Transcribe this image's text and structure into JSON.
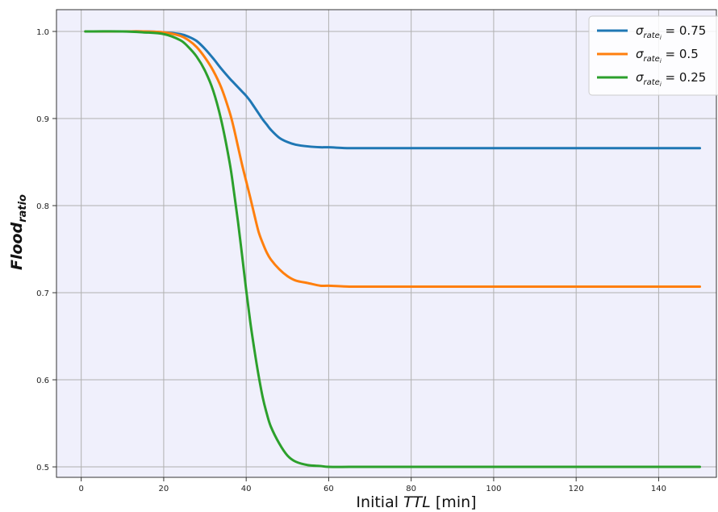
{
  "chart_data": {
    "type": "line",
    "title": "",
    "xlabel": {
      "prefix": "Initial ",
      "italic": "TTL",
      "suffix": " [min]"
    },
    "ylabel": {
      "main": "Flood",
      "subscript": "ratio"
    },
    "xlim": [
      -6,
      154
    ],
    "ylim": [
      0.488,
      1.025
    ],
    "xticks": [
      0,
      20,
      40,
      60,
      80,
      100,
      120,
      140
    ],
    "xtick_labels": [
      "0",
      "20",
      "40",
      "60",
      "80",
      "100",
      "120",
      "140"
    ],
    "yticks": [
      0.5,
      0.6,
      0.7,
      0.8,
      0.9,
      1.0
    ],
    "ytick_labels": [
      "0.5",
      "0.6",
      "0.7",
      "0.8",
      "0.9",
      "1.0"
    ],
    "grid": true,
    "background": "#f0f0fc",
    "legend_position": "top-right",
    "x": [
      1,
      10,
      15,
      20,
      24,
      26,
      28,
      30,
      32,
      34,
      36,
      37,
      38,
      39,
      40,
      41,
      42,
      43,
      44,
      45,
      46,
      48,
      50,
      52,
      55,
      58,
      60,
      65,
      70,
      80,
      100,
      120,
      150
    ],
    "series": [
      {
        "name_symbol": "σ",
        "name_subscript": "rate",
        "name_subsub": "i",
        "name_value": " = 0.75",
        "color": "#1f77b4",
        "values": [
          1.0,
          1.0,
          1.0,
          0.999,
          0.997,
          0.994,
          0.989,
          0.98,
          0.969,
          0.957,
          0.946,
          0.941,
          0.936,
          0.931,
          0.926,
          0.92,
          0.913,
          0.906,
          0.899,
          0.893,
          0.887,
          0.878,
          0.873,
          0.87,
          0.868,
          0.867,
          0.867,
          0.866,
          0.866,
          0.866,
          0.866,
          0.866,
          0.866
        ]
      },
      {
        "name_symbol": "σ",
        "name_subscript": "rate",
        "name_subsub": "i",
        "name_value": " = 0.5",
        "color": "#ff7f0e",
        "values": [
          1.0,
          1.0,
          1.0,
          0.999,
          0.995,
          0.99,
          0.982,
          0.97,
          0.955,
          0.935,
          0.907,
          0.889,
          0.868,
          0.847,
          0.828,
          0.809,
          0.789,
          0.77,
          0.757,
          0.746,
          0.738,
          0.727,
          0.719,
          0.714,
          0.711,
          0.708,
          0.708,
          0.707,
          0.707,
          0.707,
          0.707,
          0.707,
          0.707
        ]
      },
      {
        "name_symbol": "σ",
        "name_subscript": "rate",
        "name_subsub": "i",
        "name_value": " = 0.25",
        "color": "#2ca02c",
        "values": [
          1.0,
          1.0,
          0.999,
          0.997,
          0.99,
          0.982,
          0.971,
          0.955,
          0.932,
          0.897,
          0.849,
          0.817,
          0.782,
          0.743,
          0.703,
          0.666,
          0.634,
          0.605,
          0.58,
          0.561,
          0.546,
          0.527,
          0.513,
          0.506,
          0.502,
          0.501,
          0.5,
          0.5,
          0.5,
          0.5,
          0.5,
          0.5,
          0.5
        ]
      }
    ]
  }
}
